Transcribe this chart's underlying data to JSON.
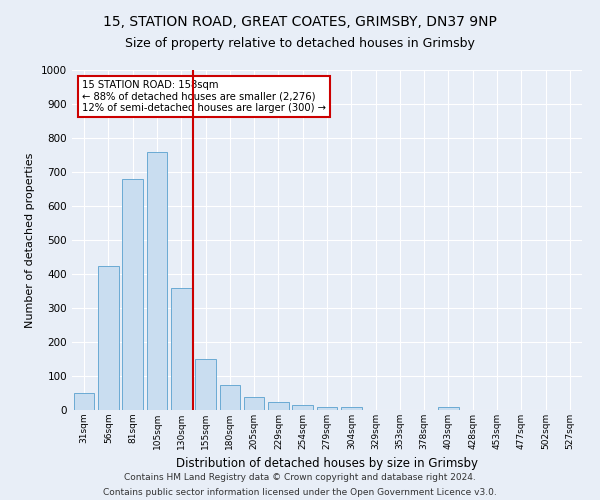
{
  "title_line1": "15, STATION ROAD, GREAT COATES, GRIMSBY, DN37 9NP",
  "title_line2": "Size of property relative to detached houses in Grimsby",
  "xlabel": "Distribution of detached houses by size in Grimsby",
  "ylabel": "Number of detached properties",
  "footer_line1": "Contains HM Land Registry data © Crown copyright and database right 2024.",
  "footer_line2": "Contains public sector information licensed under the Open Government Licence v3.0.",
  "categories": [
    "31sqm",
    "56sqm",
    "81sqm",
    "105sqm",
    "130sqm",
    "155sqm",
    "180sqm",
    "205sqm",
    "229sqm",
    "254sqm",
    "279sqm",
    "304sqm",
    "329sqm",
    "353sqm",
    "378sqm",
    "403sqm",
    "428sqm",
    "453sqm",
    "477sqm",
    "502sqm",
    "527sqm"
  ],
  "values": [
    50,
    425,
    680,
    760,
    360,
    150,
    73,
    38,
    25,
    15,
    10,
    8,
    0,
    0,
    0,
    8,
    0,
    0,
    0,
    0,
    0
  ],
  "bar_color": "#c9ddf0",
  "bar_edge_color": "#6aaad4",
  "vline_position": 4.5,
  "vline_color": "#cc0000",
  "annotation_title": "15 STATION ROAD: 158sqm",
  "annotation_line2": "← 88% of detached houses are smaller (2,276)",
  "annotation_line3": "12% of semi-detached houses are larger (300) →",
  "annotation_box_color": "#ffffff",
  "annotation_border_color": "#cc0000",
  "ylim": [
    0,
    1000
  ],
  "yticks": [
    0,
    100,
    200,
    300,
    400,
    500,
    600,
    700,
    800,
    900,
    1000
  ],
  "background_color": "#e8eef7",
  "grid_color": "#ffffff",
  "title_fontsize": 10,
  "subtitle_fontsize": 9,
  "bar_width": 0.85
}
